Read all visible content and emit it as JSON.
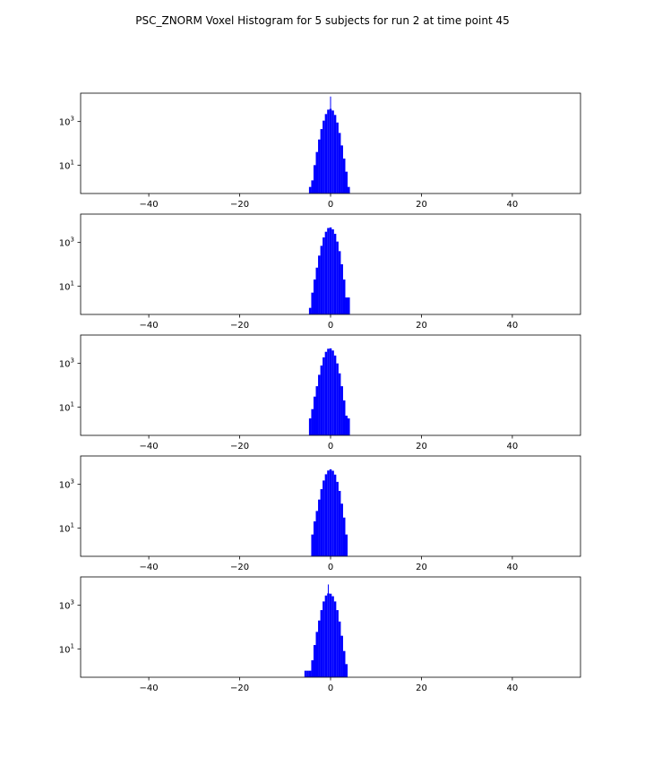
{
  "title": "PSC_ZNORM Voxel Histogram for 5 subjects for run 2 at time point 45",
  "colors": {
    "bars": "#0000ff",
    "axes": "#000000",
    "background": "#ffffff"
  },
  "chart_data": [
    {
      "type": "bar",
      "subplot": 1,
      "xlim": [
        -55,
        55
      ],
      "y_scale": "log",
      "ylim": [
        0.5,
        20000
      ],
      "x_ticks": [
        "−40",
        "−20",
        "0",
        "20",
        "40"
      ],
      "x_tick_values": [
        -40,
        -20,
        0,
        20,
        40
      ],
      "y_ticks": [
        {
          "base": "10",
          "exp": "3",
          "value": 1000
        },
        {
          "base": "10",
          "exp": "1",
          "value": 10
        }
      ],
      "x": [
        -4.5,
        -4.0,
        -3.5,
        -3.0,
        -2.5,
        -2.0,
        -1.5,
        -1.0,
        -0.5,
        0.0,
        0.5,
        1.0,
        1.5,
        2.0,
        2.5,
        3.0,
        3.5,
        4.0
      ],
      "values": [
        1,
        2,
        10,
        40,
        150,
        450,
        1100,
        2200,
        3500,
        3800,
        3200,
        2000,
        900,
        300,
        80,
        20,
        5,
        1
      ],
      "spikes": [
        {
          "x": 0.0,
          "value": 14000
        }
      ]
    },
    {
      "type": "bar",
      "subplot": 2,
      "xlim": [
        -55,
        55
      ],
      "y_scale": "log",
      "ylim": [
        0.5,
        20000
      ],
      "x_ticks": [
        "−40",
        "−20",
        "0",
        "20",
        "40"
      ],
      "x_tick_values": [
        -40,
        -20,
        0,
        20,
        40
      ],
      "y_ticks": [
        {
          "base": "10",
          "exp": "3",
          "value": 1000
        },
        {
          "base": "10",
          "exp": "1",
          "value": 10
        }
      ],
      "x": [
        -4.5,
        -4.0,
        -3.5,
        -3.0,
        -2.5,
        -2.0,
        -1.5,
        -1.0,
        -0.5,
        0.0,
        0.5,
        1.0,
        1.5,
        2.0,
        2.5,
        3.0,
        3.5,
        4.0
      ],
      "values": [
        1,
        5,
        20,
        70,
        250,
        700,
        1700,
        3100,
        4600,
        4900,
        4000,
        2500,
        1100,
        400,
        100,
        20,
        3,
        3
      ],
      "spikes": []
    },
    {
      "type": "bar",
      "subplot": 3,
      "xlim": [
        -55,
        55
      ],
      "y_scale": "log",
      "ylim": [
        0.5,
        20000
      ],
      "x_ticks": [
        "−40",
        "−20",
        "0",
        "20",
        "40"
      ],
      "x_tick_values": [
        -40,
        -20,
        0,
        20,
        40
      ],
      "y_ticks": [
        {
          "base": "10",
          "exp": "3",
          "value": 1000
        },
        {
          "base": "10",
          "exp": "1",
          "value": 10
        }
      ],
      "x": [
        -4.5,
        -4.0,
        -3.5,
        -3.0,
        -2.5,
        -2.0,
        -1.5,
        -1.0,
        -0.5,
        0.0,
        0.5,
        1.0,
        1.5,
        2.0,
        2.5,
        3.0,
        3.5,
        4.0
      ],
      "values": [
        3,
        8,
        30,
        90,
        300,
        800,
        1900,
        3400,
        4700,
        4900,
        3900,
        2300,
        1000,
        350,
        90,
        20,
        4,
        3
      ],
      "spikes": []
    },
    {
      "type": "bar",
      "subplot": 4,
      "xlim": [
        -55,
        55
      ],
      "y_scale": "log",
      "ylim": [
        0.5,
        20000
      ],
      "x_ticks": [
        "−40",
        "−20",
        "0",
        "20",
        "40"
      ],
      "x_tick_values": [
        -40,
        -20,
        0,
        20,
        40
      ],
      "y_ticks": [
        {
          "base": "10",
          "exp": "3",
          "value": 1000
        },
        {
          "base": "10",
          "exp": "1",
          "value": 10
        }
      ],
      "x": [
        -4.0,
        -3.5,
        -3.0,
        -2.5,
        -2.0,
        -1.5,
        -1.0,
        -0.5,
        0.0,
        0.5,
        1.0,
        1.5,
        2.0,
        2.5,
        3.0,
        3.5
      ],
      "values": [
        5,
        20,
        60,
        200,
        600,
        1500,
        2900,
        4300,
        4900,
        4200,
        2800,
        1300,
        500,
        130,
        30,
        5
      ],
      "spikes": []
    },
    {
      "type": "bar",
      "subplot": 5,
      "xlim": [
        -55,
        55
      ],
      "y_scale": "log",
      "ylim": [
        0.5,
        20000
      ],
      "x_ticks": [
        "−40",
        "−20",
        "0",
        "20",
        "40"
      ],
      "x_tick_values": [
        -40,
        -20,
        0,
        20,
        40
      ],
      "y_ticks": [
        {
          "base": "10",
          "exp": "3",
          "value": 1000
        },
        {
          "base": "10",
          "exp": "1",
          "value": 10
        }
      ],
      "x": [
        -5.5,
        -5.0,
        -4.5,
        -4.0,
        -3.5,
        -3.0,
        -2.5,
        -2.0,
        -1.5,
        -1.0,
        -0.5,
        0.0,
        0.5,
        1.0,
        1.5,
        2.0,
        2.5,
        3.0,
        3.5
      ],
      "values": [
        1,
        1,
        1,
        3,
        15,
        60,
        200,
        600,
        1500,
        2800,
        3500,
        3400,
        2600,
        1500,
        600,
        180,
        40,
        8,
        2
      ],
      "spikes": [
        {
          "x": -0.5,
          "value": 9000
        }
      ]
    }
  ]
}
